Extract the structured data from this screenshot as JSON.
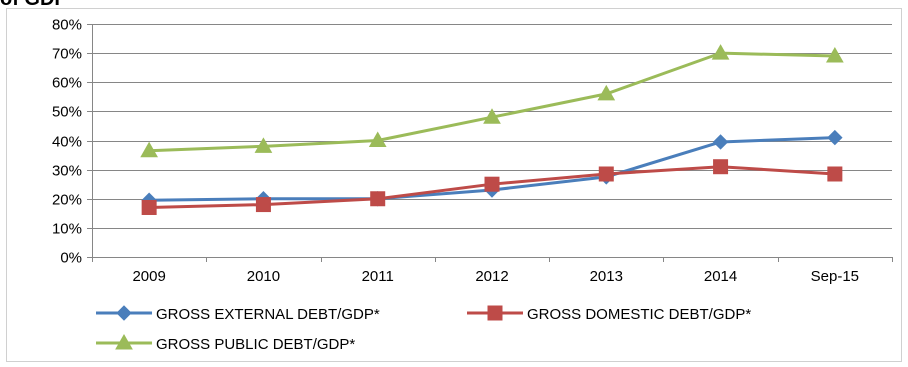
{
  "page": {
    "top_fragment": "of GDP"
  },
  "chart_data": {
    "type": "line",
    "categories": [
      "2009",
      "2010",
      "2011",
      "2012",
      "2013",
      "2014",
      "Sep-15"
    ],
    "ylim": [
      0,
      80
    ],
    "yticks": [
      "0%",
      "10%",
      "20%",
      "30%",
      "40%",
      "50%",
      "60%",
      "70%",
      "80%"
    ],
    "grid": true,
    "legend_position": "bottom",
    "series": [
      {
        "name": "GROSS EXTERNAL DEBT/GDP*",
        "color": "#4a7ebb",
        "marker": "diamond",
        "values": [
          19.5,
          20,
          20,
          23,
          27.5,
          39.5,
          41
        ]
      },
      {
        "name": "GROSS DOMESTIC DEBT/GDP*",
        "color": "#be4b48",
        "marker": "square",
        "values": [
          17,
          18,
          20,
          25,
          28.5,
          31,
          28.5
        ]
      },
      {
        "name": "GROSS PUBLIC DEBT/GDP*",
        "color": "#9bbb59",
        "marker": "triangle",
        "values": [
          36.5,
          38,
          40,
          48,
          56,
          70,
          69
        ]
      }
    ]
  }
}
